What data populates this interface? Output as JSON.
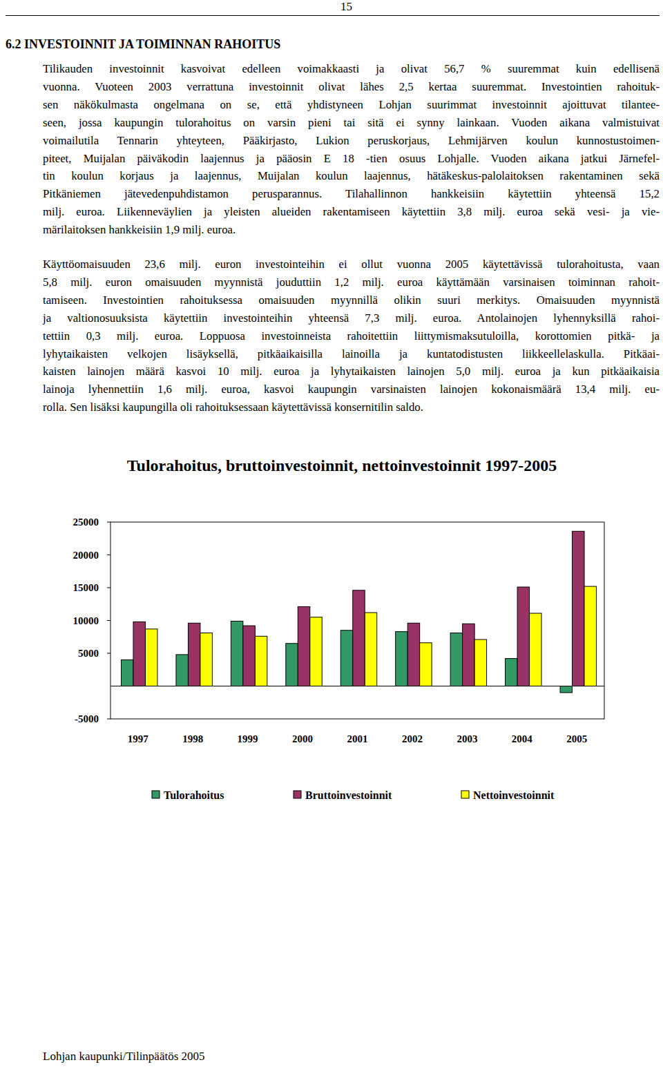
{
  "page_number": "15",
  "heading": "6.2 INVESTOINNIT JA TOIMINNAN RAHOITUS",
  "paragraphs": [
    [
      "Tilikauden investoinnit kasvoivat edelleen voimakkaasti ja olivat 56,7 % suuremmat kuin edellisenä",
      "vuonna. Vuoteen 2003 verrattuna investoinnit olivat lähes 2,5 kertaa suuremmat. Investointien rahoituk-",
      "sen näkökulmasta ongelmana on se, että yhdistyneen Lohjan suurimmat investoinnit ajoittuvat tilantee-",
      "seen, jossa kaupungin tulorahoitus on varsin pieni tai sitä ei synny lainkaan. Vuoden aikana valmistuivat",
      "voimailutila Tennarin yhteyteen, Pääkirjasto, Lukion peruskorjaus, Lehmijärven koulun kunnostustoimen-",
      "piteet, Muijalan päiväkodin laajennus ja pääosin E 18 -tien osuus Lohjalle. Vuoden aikana jatkui Järnefel-",
      "tin koulun korjaus ja laajennus, Muijalan koulun laajennus, hätäkeskus-palolaitoksen rakentaminen sekä",
      "Pitkäniemen jätevedenpuhdistamon perusparannus. Tilahallinnon hankkeisiin käytettiin yhteensä 15,2",
      "milj. euroa. Liikenneväylien ja yleisten alueiden rakentamiseen käytettiin 3,8 milj. euroa sekä vesi- ja vie-",
      "märilaitoksen hankkeisiin 1,9 milj. euroa."
    ],
    [
      "Käyttöomaisuuden 23,6 milj. euron investointeihin ei ollut vuonna 2005 käytettävissä tulorahoitusta, vaan",
      "5,8 milj. euron omaisuuden myynnistä jouduttiin 1,2 milj. euroa käyttämään varsinaisen toiminnan rahoit-",
      "tamiseen. Investointien rahoituksessa omaisuuden myynnillä olikin suuri merkitys. Omaisuuden myynnistä",
      "ja valtionosuuksista käytettiin investointeihin yhteensä 7,3 milj. euroa. Antolainojen lyhennyksillä rahoi-",
      "tettiin 0,3 milj. euroa. Loppuosa investoinneista rahoitettiin liittymismaksutuloilla, korottomien pitkä- ja",
      "lyhytaikaisten velkojen lisäyksellä, pitkäaikaisilla lainoilla ja kuntatodistusten liikkeellelaskulla. Pitkäai-",
      "kaisten lainojen määrä kasvoi 10 milj. euroa ja lyhytaikaisten lainojen 5,0 milj. euroa ja kun pitkäaikaisia",
      "lainoja lyhennettiin 1,6 milj. euroa, kasvoi kaupungin varsinaisten lainojen kokonaismäärä 13,4 milj. eu-",
      "rolla. Sen lisäksi kaupungilla oli rahoituksessaan käytettävissä konsernitilin saldo."
    ]
  ],
  "chart_data": {
    "type": "bar",
    "title": "Tulorahoitus, bruttoinvestoinnit, nettoinvestoinnit 1997-2005",
    "categories": [
      "1997",
      "1998",
      "1999",
      "2000",
      "2001",
      "2002",
      "2003",
      "2004",
      "2005"
    ],
    "series": [
      {
        "name": "Tulorahoitus",
        "color": "#339966",
        "values": [
          4000,
          4800,
          9900,
          6500,
          8500,
          8300,
          8100,
          4200,
          -1000
        ]
      },
      {
        "name": "Bruttoinvestoinnit",
        "color": "#993366",
        "values": [
          9800,
          9600,
          9200,
          12100,
          14600,
          9600,
          9500,
          15100,
          23600
        ]
      },
      {
        "name": "Nettoinvestoinnit",
        "color": "#ffff00",
        "values": [
          8700,
          8100,
          7600,
          10500,
          11200,
          6600,
          7100,
          11100,
          15200
        ]
      }
    ],
    "ylim": [
      -5000,
      25000
    ],
    "yticks": [
      -5000,
      5000,
      10000,
      15000,
      20000,
      25000
    ],
    "grid": false,
    "legend": "bottom"
  },
  "footer": "Lohjan kaupunki/Tilinpäätös 2005"
}
